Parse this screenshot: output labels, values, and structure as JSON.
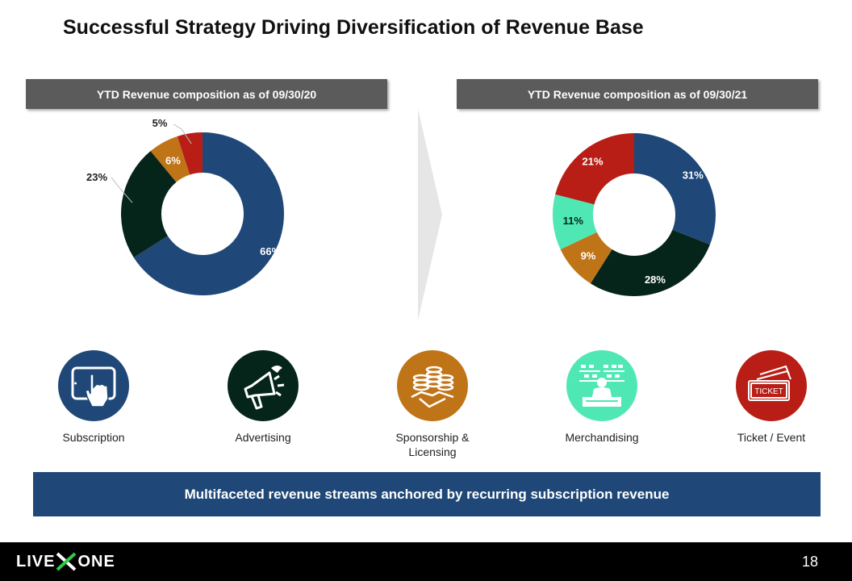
{
  "title": "Successful Strategy Driving Diversification of Revenue Base",
  "colors": {
    "subscription": "#1f4878",
    "advertising": "#06251a",
    "sponsorship": "#bf7417",
    "merchandising": "#4fe8b5",
    "ticket": "#b81e16",
    "header_bg": "#5b5b5b",
    "banner_bg": "#1f4878"
  },
  "chart_data": [
    {
      "type": "pie",
      "header": "YTD Revenue composition as of 09/30/20",
      "slices": [
        {
          "key": "subscription",
          "value": 66,
          "label": "66%"
        },
        {
          "key": "advertising",
          "value": 23,
          "label": "23%"
        },
        {
          "key": "sponsorship",
          "value": 6,
          "label": "6%"
        },
        {
          "key": "ticket",
          "value": 5,
          "label": "5%"
        }
      ]
    },
    {
      "type": "pie",
      "header": "YTD Revenue composition as of 09/30/21",
      "slices": [
        {
          "key": "subscription",
          "value": 31,
          "label": "31%"
        },
        {
          "key": "advertising",
          "value": 28,
          "label": "28%"
        },
        {
          "key": "sponsorship",
          "value": 9,
          "label": "9%"
        },
        {
          "key": "merchandising",
          "value": 11,
          "label": "11%"
        },
        {
          "key": "ticket",
          "value": 21,
          "label": "21%"
        }
      ]
    }
  ],
  "categories": [
    {
      "key": "subscription",
      "label": "Subscription",
      "icon": "tablet-touch-icon"
    },
    {
      "key": "advertising",
      "label": "Advertising",
      "icon": "megaphone-icon"
    },
    {
      "key": "sponsorship",
      "label": "Sponsorship & Licensing",
      "icon": "handshake-coins-icon"
    },
    {
      "key": "merchandising",
      "label": "Merchandising",
      "icon": "merch-store-icon"
    },
    {
      "key": "ticket",
      "label": "Ticket / Event",
      "icon": "ticket-icon",
      "icon_text": "TICKET"
    }
  ],
  "banner": "Multifaceted revenue streams anchored by recurring subscription revenue",
  "footer": {
    "logo_left": "LIVE",
    "logo_right": "ONE",
    "page_number": "18"
  }
}
